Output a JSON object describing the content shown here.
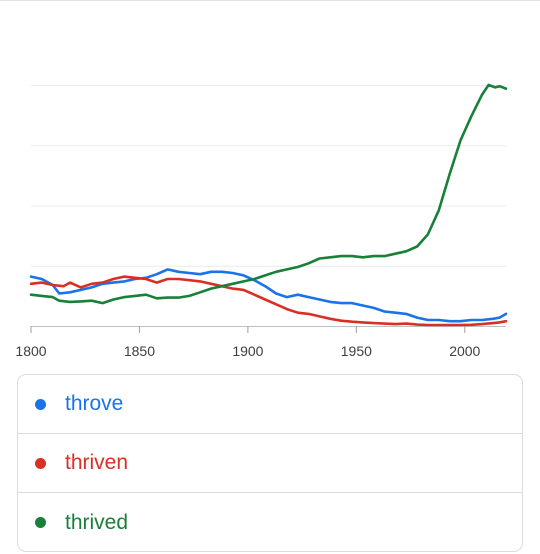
{
  "chart_data": {
    "type": "line",
    "xlabel": "",
    "ylabel": "",
    "xlim": [
      1800,
      2019
    ],
    "ylim": [
      0,
      1
    ],
    "grid": true,
    "legend_placement": "bottom",
    "x_ticks": [
      "1800",
      "1850",
      "1900",
      "1950",
      "2000"
    ],
    "series": [
      {
        "name": "throve",
        "color": "#1a73e8",
        "points": [
          [
            1800,
            0.205
          ],
          [
            1805,
            0.195
          ],
          [
            1810,
            0.17
          ],
          [
            1813,
            0.135
          ],
          [
            1818,
            0.14
          ],
          [
            1823,
            0.15
          ],
          [
            1828,
            0.16
          ],
          [
            1833,
            0.175
          ],
          [
            1838,
            0.18
          ],
          [
            1843,
            0.185
          ],
          [
            1848,
            0.195
          ],
          [
            1853,
            0.2
          ],
          [
            1858,
            0.215
          ],
          [
            1863,
            0.235
          ],
          [
            1868,
            0.225
          ],
          [
            1873,
            0.22
          ],
          [
            1878,
            0.215
          ],
          [
            1883,
            0.225
          ],
          [
            1888,
            0.225
          ],
          [
            1893,
            0.22
          ],
          [
            1898,
            0.21
          ],
          [
            1903,
            0.19
          ],
          [
            1908,
            0.165
          ],
          [
            1913,
            0.135
          ],
          [
            1918,
            0.12
          ],
          [
            1923,
            0.13
          ],
          [
            1928,
            0.12
          ],
          [
            1933,
            0.11
          ],
          [
            1938,
            0.1
          ],
          [
            1943,
            0.095
          ],
          [
            1948,
            0.095
          ],
          [
            1953,
            0.085
          ],
          [
            1958,
            0.075
          ],
          [
            1963,
            0.06
          ],
          [
            1968,
            0.055
          ],
          [
            1973,
            0.05
          ],
          [
            1978,
            0.035
          ],
          [
            1983,
            0.025
          ],
          [
            1988,
            0.025
          ],
          [
            1993,
            0.02
          ],
          [
            1998,
            0.02
          ],
          [
            2003,
            0.025
          ],
          [
            2008,
            0.025
          ],
          [
            2013,
            0.03
          ],
          [
            2016,
            0.035
          ],
          [
            2019,
            0.05
          ]
        ]
      },
      {
        "name": "thriven",
        "color": "#d93025",
        "points": [
          [
            1800,
            0.175
          ],
          [
            1805,
            0.18
          ],
          [
            1810,
            0.17
          ],
          [
            1815,
            0.165
          ],
          [
            1818,
            0.18
          ],
          [
            1823,
            0.16
          ],
          [
            1828,
            0.175
          ],
          [
            1833,
            0.18
          ],
          [
            1838,
            0.195
          ],
          [
            1843,
            0.205
          ],
          [
            1848,
            0.2
          ],
          [
            1853,
            0.195
          ],
          [
            1858,
            0.18
          ],
          [
            1863,
            0.195
          ],
          [
            1868,
            0.195
          ],
          [
            1873,
            0.19
          ],
          [
            1878,
            0.185
          ],
          [
            1883,
            0.175
          ],
          [
            1888,
            0.165
          ],
          [
            1893,
            0.155
          ],
          [
            1898,
            0.15
          ],
          [
            1903,
            0.13
          ],
          [
            1908,
            0.11
          ],
          [
            1913,
            0.09
          ],
          [
            1918,
            0.07
          ],
          [
            1923,
            0.055
          ],
          [
            1928,
            0.05
          ],
          [
            1933,
            0.04
          ],
          [
            1938,
            0.03
          ],
          [
            1943,
            0.022
          ],
          [
            1948,
            0.018
          ],
          [
            1953,
            0.015
          ],
          [
            1958,
            0.012
          ],
          [
            1963,
            0.01
          ],
          [
            1968,
            0.008
          ],
          [
            1973,
            0.01
          ],
          [
            1978,
            0.006
          ],
          [
            1983,
            0.004
          ],
          [
            1988,
            0.004
          ],
          [
            1993,
            0.004
          ],
          [
            1998,
            0.004
          ],
          [
            2003,
            0.005
          ],
          [
            2008,
            0.008
          ],
          [
            2013,
            0.012
          ],
          [
            2016,
            0.015
          ],
          [
            2019,
            0.02
          ]
        ]
      },
      {
        "name": "thrived",
        "color": "#188038",
        "points": [
          [
            1800,
            0.13
          ],
          [
            1805,
            0.125
          ],
          [
            1810,
            0.12
          ],
          [
            1813,
            0.105
          ],
          [
            1818,
            0.1
          ],
          [
            1823,
            0.102
          ],
          [
            1828,
            0.105
          ],
          [
            1833,
            0.095
          ],
          [
            1838,
            0.11
          ],
          [
            1843,
            0.12
          ],
          [
            1848,
            0.125
          ],
          [
            1853,
            0.13
          ],
          [
            1858,
            0.115
          ],
          [
            1863,
            0.118
          ],
          [
            1868,
            0.118
          ],
          [
            1873,
            0.125
          ],
          [
            1878,
            0.14
          ],
          [
            1883,
            0.155
          ],
          [
            1888,
            0.165
          ],
          [
            1893,
            0.175
          ],
          [
            1898,
            0.185
          ],
          [
            1903,
            0.195
          ],
          [
            1908,
            0.21
          ],
          [
            1913,
            0.225
          ],
          [
            1918,
            0.235
          ],
          [
            1923,
            0.245
          ],
          [
            1928,
            0.26
          ],
          [
            1933,
            0.28
          ],
          [
            1938,
            0.285
          ],
          [
            1943,
            0.29
          ],
          [
            1948,
            0.29
          ],
          [
            1953,
            0.285
          ],
          [
            1958,
            0.29
          ],
          [
            1963,
            0.29
          ],
          [
            1968,
            0.3
          ],
          [
            1973,
            0.31
          ],
          [
            1978,
            0.33
          ],
          [
            1983,
            0.38
          ],
          [
            1988,
            0.48
          ],
          [
            1993,
            0.63
          ],
          [
            1998,
            0.77
          ],
          [
            2003,
            0.87
          ],
          [
            2008,
            0.96
          ],
          [
            2011,
            1.0
          ],
          [
            2014,
            0.99
          ],
          [
            2016,
            0.995
          ],
          [
            2019,
            0.985
          ]
        ]
      }
    ]
  },
  "legend": {
    "items": [
      {
        "label": "throve",
        "color": "#1a73e8"
      },
      {
        "label": "thriven",
        "color": "#d93025"
      },
      {
        "label": "thrived",
        "color": "#188038"
      }
    ]
  }
}
